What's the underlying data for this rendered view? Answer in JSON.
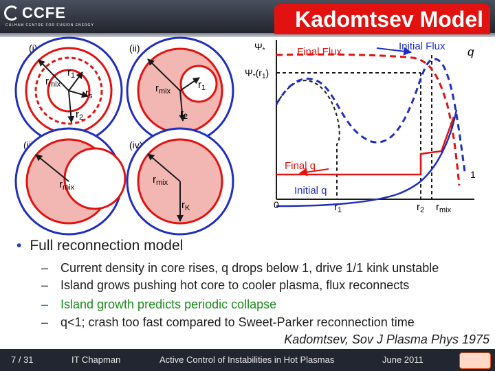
{
  "header": {
    "logo_text": "CCFE",
    "logo_tagline": "CULHAM CENTRE FOR FUSION ENERGY",
    "title": "Kadomtsev Model"
  },
  "diagrams": {
    "panel_i": "(i)",
    "panel_ii": "(ii)",
    "panel_iii": "(iii)",
    "panel_iv": "(iv)",
    "r_mix": "r",
    "r_mix_sub": "mix",
    "r_1": "r",
    "r_1_sub": "1",
    "r_s": "r",
    "r_s_sub": "s",
    "r_2": "r",
    "r_2_sub": "2",
    "r_K": "r",
    "r_K_sub": "K"
  },
  "plot": {
    "psi_star": "Ψ",
    "psi_star_sub": "*",
    "psi_star_r1": "Ψ",
    "psi_star_r1_suffix": "(r",
    "psi_star_r1_close": ")",
    "final_flux": "Final Flux",
    "initial_flux": "Initial Flux",
    "q_label": "q",
    "final_q": "Final q",
    "initial_q": "Initial q",
    "one": "1",
    "zero": "0",
    "tick_r1": "r",
    "tick_r1_sub": "1",
    "tick_r2": "r",
    "tick_r2_sub": "2",
    "tick_rmix": "r",
    "tick_rmix_sub": "mix"
  },
  "colors": {
    "red": "#e1120f",
    "blue": "#1f2ec0",
    "pink": "#f3b7b3",
    "green": "#1a8a1a"
  },
  "bullets": {
    "main": "Full reconnection model",
    "items": [
      "Current density in core rises, q drops below 1, drive 1/1 kink unstable",
      "Island grows pushing hot core to cooler plasma, flux reconnects",
      "Island growth predicts periodic collapse",
      "q<1; crash too fast compared to Sweet-Parker reconnection time"
    ],
    "dash": "–",
    "reference": "Kadomtsev, Sov J Plasma Phys 1975"
  },
  "footer": {
    "page": "7 / 31",
    "author": "IT Chapman",
    "talk": "Active Control of Instabilities in Hot Plasmas",
    "date": "June 2011"
  }
}
